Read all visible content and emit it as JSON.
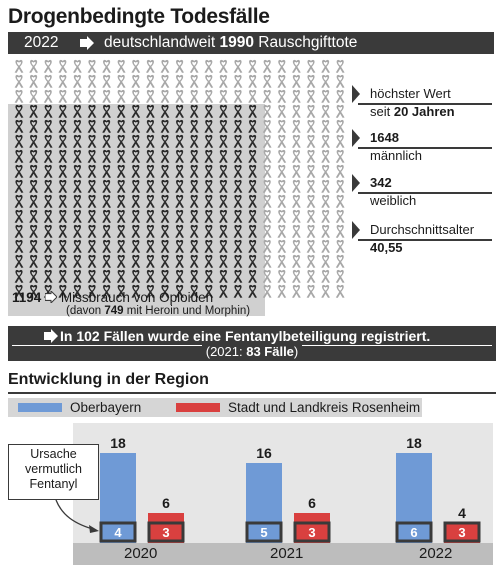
{
  "header": {
    "title": "Drogenbedingte Todesfälle",
    "year": "2022",
    "headline_prefix": "deutschlandweit",
    "headline_number": "1990",
    "headline_suffix": "Rauschgifttote"
  },
  "stats": [
    {
      "line1": "höchster Wert",
      "line2_prefix": "seit ",
      "line2_bold": "20 Jahren"
    },
    {
      "line1_bold": "1648",
      "line2": "männlich"
    },
    {
      "line1_bold": "342",
      "line2": "weiblich"
    },
    {
      "line1": "Durchschnittsalter",
      "line2_bold": "40,55"
    }
  ],
  "opioids": {
    "count": "1194",
    "label": "Missbrauch von Opioiden",
    "sub_prefix": "(davon ",
    "sub_number": "749",
    "sub_suffix": " mit Heroin und Morphin)"
  },
  "fentanyl": {
    "line1": "In 102 Fällen wurde eine Fentanylbeteiligung registriert.",
    "line2_prefix": "(2021: ",
    "line2_number": "83 Fälle",
    "line2_suffix": ")"
  },
  "region": {
    "title": "Entwicklung in der Region",
    "callout": [
      "Ursache",
      "vermutlich",
      "Fentanyl"
    ]
  },
  "colors": {
    "oberbayern": "#6f9ad6",
    "rosenheim": "#d9403f",
    "dark": "#3a3a3a",
    "ribbon_dark": "#2b2b2b",
    "ribbon_light": "#a8a8a8"
  },
  "icons": {
    "ribbon": "awareness-ribbon-icon",
    "arrow": "arrow-right-icon"
  },
  "chart_data": {
    "type": "bar",
    "categories": [
      "2020",
      "2021",
      "2022"
    ],
    "series": [
      {
        "name": "Oberbayern",
        "values": [
          18,
          16,
          18
        ],
        "fentanyl": [
          4,
          5,
          6
        ]
      },
      {
        "name": "Stadt und Landkreis Rosenheim",
        "values": [
          6,
          6,
          4
        ],
        "fentanyl": [
          3,
          3,
          3
        ]
      }
    ],
    "ylim": [
      0,
      20
    ]
  }
}
